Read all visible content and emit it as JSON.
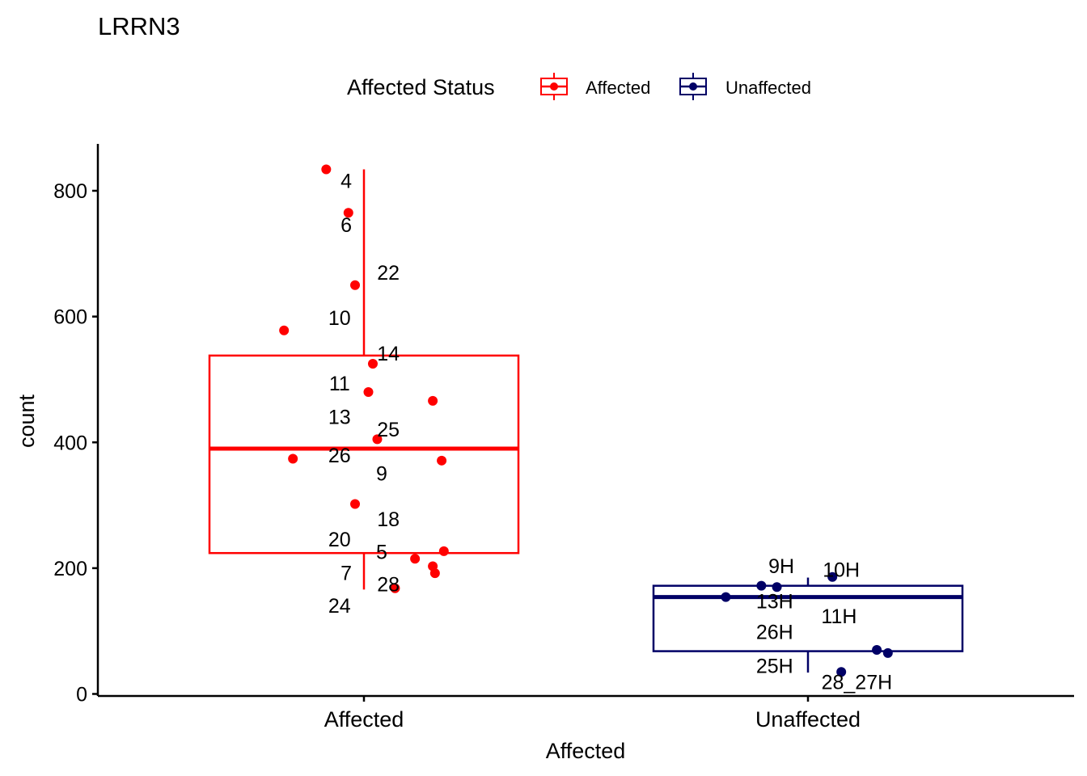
{
  "chart_data": {
    "type": "box",
    "title": "LRRN3",
    "xlabel": "Affected",
    "ylabel": "count",
    "ylim": [
      0,
      870
    ],
    "yticks": [
      0,
      200,
      400,
      600,
      800
    ],
    "categories": [
      "Affected",
      "Unaffected"
    ],
    "grid": false,
    "legend": {
      "title": "Affected Status",
      "position": "top",
      "entries": [
        {
          "label": "Affected",
          "color": "#FF0000"
        },
        {
          "label": "Unaffected",
          "color": "#000066"
        }
      ]
    },
    "boxes": [
      {
        "category": "Affected",
        "color": "#FF0000",
        "min": 166,
        "q1": 224,
        "median": 390,
        "q3": 538,
        "max": 834
      },
      {
        "category": "Unaffected",
        "color": "#000066",
        "min": 34,
        "q1": 68,
        "median": 154,
        "q3": 172,
        "max": 185
      }
    ],
    "series": [
      {
        "name": "Affected",
        "color": "#FF0000",
        "points": [
          {
            "x": -0.085,
            "y": 834,
            "label": "4"
          },
          {
            "x": -0.035,
            "y": 765,
            "label": "6"
          },
          {
            "x": -0.02,
            "y": 650,
            "label": "22"
          },
          {
            "x": -0.18,
            "y": 578,
            "label": "10"
          },
          {
            "x": 0.02,
            "y": 525,
            "label": "14"
          },
          {
            "x": 0.01,
            "y": 480,
            "label": "11"
          },
          {
            "x": 0.155,
            "y": 466,
            "label": "13"
          },
          {
            "x": 0.03,
            "y": 405,
            "label": "25"
          },
          {
            "x": -0.16,
            "y": 374,
            "label": "26"
          },
          {
            "x": 0.175,
            "y": 371,
            "label": "9"
          },
          {
            "x": -0.02,
            "y": 302,
            "label": "18"
          },
          {
            "x": 0.18,
            "y": 227,
            "label": "20"
          },
          {
            "x": 0.115,
            "y": 215,
            "label": "5"
          },
          {
            "x": 0.155,
            "y": 203,
            "label": "7"
          },
          {
            "x": 0.16,
            "y": 192,
            "label": "28"
          },
          {
            "x": 0.07,
            "y": 168,
            "label": "24"
          }
        ]
      },
      {
        "name": "Unaffected",
        "color": "#000066",
        "points": [
          {
            "x": -0.105,
            "y": 172,
            "label": "9H"
          },
          {
            "x": 0.055,
            "y": 186,
            "label": "10H"
          },
          {
            "x": -0.07,
            "y": 170,
            "label": "13H"
          },
          {
            "x": -0.185,
            "y": 154,
            "label": "11H"
          },
          {
            "x": 0.155,
            "y": 70,
            "label": "26H"
          },
          {
            "x": 0.18,
            "y": 65,
            "label": "25H"
          },
          {
            "x": 0.075,
            "y": 35,
            "label": "28_27H"
          }
        ]
      }
    ],
    "point_labels": [
      {
        "series": "Affected",
        "text": "4",
        "x": -0.04,
        "y": 816
      },
      {
        "series": "Affected",
        "text": "6",
        "x": -0.04,
        "y": 746
      },
      {
        "series": "Affected",
        "text": "22",
        "x": 0.055,
        "y": 670
      },
      {
        "series": "Affected",
        "text": "10",
        "x": -0.055,
        "y": 598
      },
      {
        "series": "Affected",
        "text": "14",
        "x": 0.055,
        "y": 542
      },
      {
        "series": "Affected",
        "text": "11",
        "x": -0.055,
        "y": 494
      },
      {
        "series": "Affected",
        "text": "13",
        "x": -0.055,
        "y": 441
      },
      {
        "series": "Affected",
        "text": "25",
        "x": 0.055,
        "y": 421
      },
      {
        "series": "Affected",
        "text": "26",
        "x": -0.055,
        "y": 380
      },
      {
        "series": "Affected",
        "text": "9",
        "x": 0.04,
        "y": 351
      },
      {
        "series": "Affected",
        "text": "18",
        "x": 0.055,
        "y": 278
      },
      {
        "series": "Affected",
        "text": "20",
        "x": -0.055,
        "y": 246
      },
      {
        "series": "Affected",
        "text": "5",
        "x": 0.04,
        "y": 226
      },
      {
        "series": "Affected",
        "text": "7",
        "x": -0.04,
        "y": 193
      },
      {
        "series": "Affected",
        "text": "28",
        "x": 0.055,
        "y": 175
      },
      {
        "series": "Affected",
        "text": "24",
        "x": -0.055,
        "y": 141
      },
      {
        "series": "Unaffected",
        "text": "9H",
        "x": -0.06,
        "y": 204
      },
      {
        "series": "Unaffected",
        "text": "10H",
        "x": 0.075,
        "y": 198
      },
      {
        "series": "Unaffected",
        "text": "13H",
        "x": -0.075,
        "y": 148
      },
      {
        "series": "Unaffected",
        "text": "11H",
        "x": 0.07,
        "y": 124
      },
      {
        "series": "Unaffected",
        "text": "26H",
        "x": -0.075,
        "y": 99
      },
      {
        "series": "Unaffected",
        "text": "25H",
        "x": -0.075,
        "y": 45
      },
      {
        "series": "Unaffected",
        "text": "28_27H",
        "x": 0.11,
        "y": 19
      }
    ]
  }
}
